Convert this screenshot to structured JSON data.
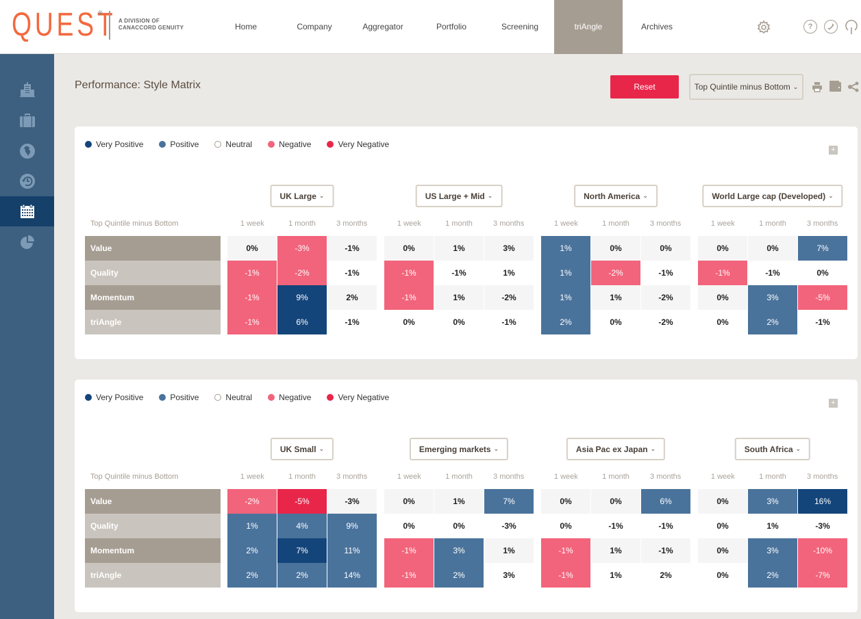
{
  "app": {
    "logo_text": "QUEST",
    "logo_reg": "®",
    "logo_subtitle_line1": "A DIVISION OF",
    "logo_subtitle_line2": "CANACCORD GENUITY"
  },
  "nav": {
    "items": [
      {
        "label": "Home",
        "active": false
      },
      {
        "label": "Company",
        "active": false
      },
      {
        "label": "Aggregator",
        "active": false
      },
      {
        "label": "Portfolio",
        "active": false
      },
      {
        "label": "Screening",
        "active": false
      },
      {
        "label": "triAngle",
        "active": true
      },
      {
        "label": "Archives",
        "active": false
      }
    ],
    "icons": [
      "gear-icon",
      "help-icon",
      "phone-icon",
      "power-icon"
    ],
    "help_glyph": "?"
  },
  "sidebar": {
    "items": [
      {
        "icon": "building-icon",
        "active": false
      },
      {
        "icon": "briefcase-icon",
        "active": false
      },
      {
        "icon": "globe-icon",
        "active": false
      },
      {
        "icon": "history-icon",
        "active": false
      },
      {
        "icon": "calendar-icon",
        "active": true
      },
      {
        "icon": "pie-chart-icon",
        "active": false
      }
    ]
  },
  "header": {
    "title": "Performance: Style Matrix",
    "reset_label": "Reset",
    "metric_select": "Top Quintile minus Bottom",
    "chevron": "⌄"
  },
  "colors": {
    "very_positive": "#14457a",
    "positive": "#4a739c",
    "neutral_a": "#f5f5f5",
    "neutral_b": "#ffffff",
    "negative": "#f2647b",
    "very_negative": "#e8264a"
  },
  "legend": [
    {
      "label": "Very Positive",
      "key": "very_positive"
    },
    {
      "label": "Positive",
      "key": "positive"
    },
    {
      "label": "Neutral",
      "key": "neutral"
    },
    {
      "label": "Negative",
      "key": "negative"
    },
    {
      "label": "Very Negative",
      "key": "very_negative"
    }
  ],
  "matrix": {
    "corner_label": "Top Quintile minus Bottom",
    "rows": [
      "Value",
      "Quality",
      "Momentum",
      "triAngle"
    ],
    "periods": [
      "1 week",
      "1 month",
      "3 months"
    ],
    "plus_label": "+"
  },
  "panels": [
    {
      "regions": [
        {
          "name": "UK Large",
          "values": [
            [
              "0%",
              "-3%",
              "-1%"
            ],
            [
              "-1%",
              "-2%",
              "-1%"
            ],
            [
              "-1%",
              "9%",
              "2%"
            ],
            [
              "-1%",
              "6%",
              "-1%"
            ]
          ],
          "classes": [
            [
              "n",
              "neg",
              "n"
            ],
            [
              "neg",
              "neg",
              "n"
            ],
            [
              "neg",
              "vpos",
              "n"
            ],
            [
              "neg",
              "vpos",
              "n"
            ]
          ]
        },
        {
          "name": "US Large + Mid",
          "values": [
            [
              "0%",
              "1%",
              "3%"
            ],
            [
              "-1%",
              "-1%",
              "1%"
            ],
            [
              "-1%",
              "1%",
              "-2%"
            ],
            [
              "0%",
              "0%",
              "-1%"
            ]
          ],
          "classes": [
            [
              "n",
              "n",
              "n"
            ],
            [
              "neg",
              "n",
              "n"
            ],
            [
              "neg",
              "n",
              "n"
            ],
            [
              "n",
              "n",
              "n"
            ]
          ]
        },
        {
          "name": "North America",
          "values": [
            [
              "1%",
              "0%",
              "0%"
            ],
            [
              "1%",
              "-2%",
              "-1%"
            ],
            [
              "1%",
              "1%",
              "-2%"
            ],
            [
              "2%",
              "0%",
              "-2%"
            ]
          ],
          "classes": [
            [
              "pos",
              "n",
              "n"
            ],
            [
              "pos",
              "neg",
              "n"
            ],
            [
              "pos",
              "n",
              "n"
            ],
            [
              "pos",
              "n",
              "n"
            ]
          ]
        },
        {
          "name": "World Large cap (Developed)",
          "values": [
            [
              "0%",
              "0%",
              "7%"
            ],
            [
              "-1%",
              "-1%",
              "0%"
            ],
            [
              "0%",
              "3%",
              "-5%"
            ],
            [
              "0%",
              "2%",
              "-1%"
            ]
          ],
          "classes": [
            [
              "n",
              "n",
              "pos"
            ],
            [
              "neg",
              "n",
              "n"
            ],
            [
              "n",
              "pos",
              "neg"
            ],
            [
              "n",
              "pos",
              "n"
            ]
          ]
        }
      ]
    },
    {
      "regions": [
        {
          "name": "UK Small",
          "values": [
            [
              "-2%",
              "-5%",
              "-3%"
            ],
            [
              "1%",
              "4%",
              "9%"
            ],
            [
              "2%",
              "7%",
              "11%"
            ],
            [
              "2%",
              "2%",
              "14%"
            ]
          ],
          "classes": [
            [
              "neg",
              "vneg",
              "n"
            ],
            [
              "pos",
              "pos",
              "pos"
            ],
            [
              "pos",
              "vpos",
              "pos"
            ],
            [
              "pos",
              "pos",
              "pos"
            ]
          ]
        },
        {
          "name": "Emerging markets",
          "values": [
            [
              "0%",
              "1%",
              "7%"
            ],
            [
              "0%",
              "0%",
              "-3%"
            ],
            [
              "-1%",
              "3%",
              "1%"
            ],
            [
              "-1%",
              "2%",
              "3%"
            ]
          ],
          "classes": [
            [
              "n",
              "n",
              "pos"
            ],
            [
              "n",
              "n",
              "n"
            ],
            [
              "neg",
              "pos",
              "n"
            ],
            [
              "neg",
              "pos",
              "n"
            ]
          ]
        },
        {
          "name": "Asia Pac ex Japan",
          "values": [
            [
              "0%",
              "0%",
              "6%"
            ],
            [
              "0%",
              "-1%",
              "-1%"
            ],
            [
              "-1%",
              "1%",
              "-1%"
            ],
            [
              "-1%",
              "1%",
              "2%"
            ]
          ],
          "classes": [
            [
              "n",
              "n",
              "pos"
            ],
            [
              "n",
              "n",
              "n"
            ],
            [
              "neg",
              "n",
              "n"
            ],
            [
              "neg",
              "n",
              "n"
            ]
          ]
        },
        {
          "name": "South Africa",
          "values": [
            [
              "0%",
              "3%",
              "16%"
            ],
            [
              "0%",
              "1%",
              "-3%"
            ],
            [
              "0%",
              "3%",
              "-10%"
            ],
            [
              "0%",
              "2%",
              "-7%"
            ]
          ],
          "classes": [
            [
              "n",
              "pos",
              "vpos"
            ],
            [
              "n",
              "n",
              "n"
            ],
            [
              "n",
              "pos",
              "neg"
            ],
            [
              "n",
              "pos",
              "neg"
            ]
          ]
        }
      ]
    }
  ]
}
